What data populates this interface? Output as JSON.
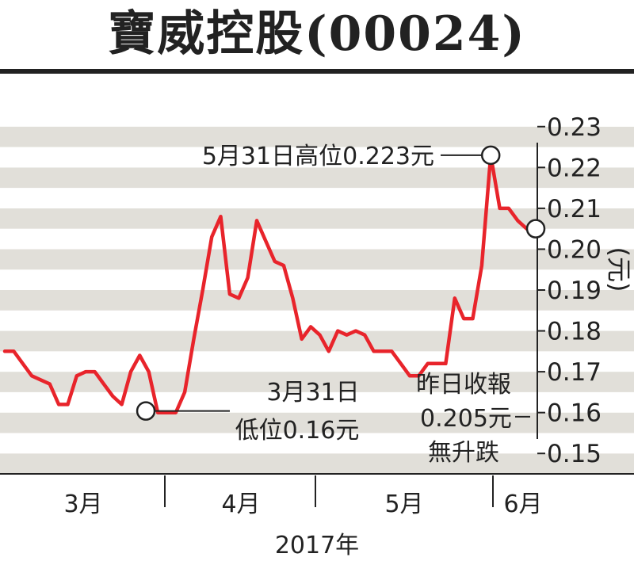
{
  "chart_data": {
    "type": "line",
    "title": "寶威控股(00024)",
    "ylabel": "(元)",
    "xlabel": "2017年",
    "ylim": [
      0.145,
      0.235
    ],
    "yticks": [
      0.23,
      0.22,
      0.21,
      0.2,
      0.19,
      0.18,
      0.17,
      0.16,
      0.15
    ],
    "ytick_labels": [
      "0.23",
      "0.22",
      "0.21",
      "0.20",
      "0.19",
      "0.18",
      "0.17",
      "0.16",
      "0.15"
    ],
    "months": [
      "3月",
      "4月",
      "5月",
      "6月"
    ],
    "grid": "horizontal bands",
    "line_color": "#e8242b",
    "series": [
      {
        "values": [
          0.175,
          0.175,
          0.172,
          0.169,
          0.168,
          0.167,
          0.162,
          0.162,
          0.169,
          0.17,
          0.17,
          0.167,
          0.164,
          0.162,
          0.17,
          0.174,
          0.17,
          0.16,
          0.16,
          0.16,
          0.165,
          0.178,
          0.19,
          0.203,
          0.208,
          0.189,
          0.188,
          0.193,
          0.207,
          0.202,
          0.197,
          0.196,
          0.188,
          0.178,
          0.181,
          0.179,
          0.175,
          0.18,
          0.179,
          0.18,
          0.179,
          0.175,
          0.175,
          0.175,
          0.172,
          0.169,
          0.169,
          0.172,
          0.172,
          0.172,
          0.188,
          0.183,
          0.183,
          0.196,
          0.223,
          0.21,
          0.21,
          0.207,
          0.205,
          0.205
        ]
      }
    ],
    "annotations": [
      {
        "line1": "5月31日高位0.223元",
        "value": 0.223
      },
      {
        "line1": "3月31日",
        "line2": "低位0.16元",
        "value": 0.16
      },
      {
        "line1": "昨日收報",
        "line2": "0.205元",
        "line3": "無升跌",
        "value": 0.205
      }
    ]
  }
}
